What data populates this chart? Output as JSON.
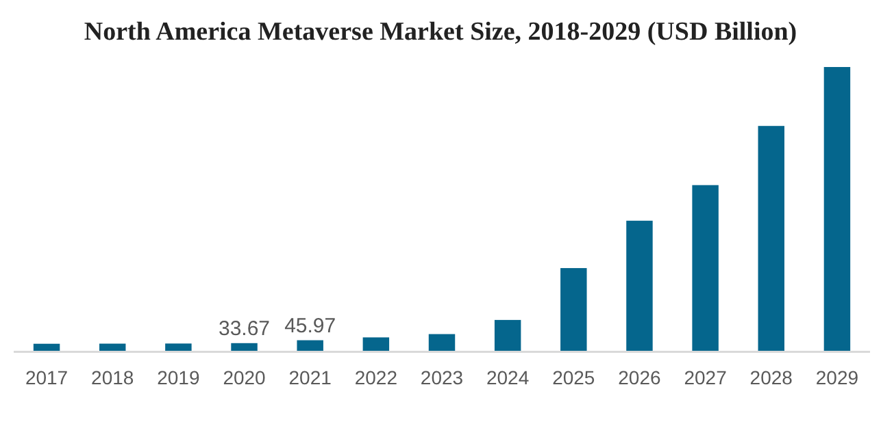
{
  "chart_data": {
    "type": "bar",
    "title": "North America Metaverse Market Size, 2018-2029 (USD Billion)",
    "categories": [
      "2017",
      "2018",
      "2019",
      "2020",
      "2021",
      "2022",
      "2023",
      "2024",
      "2025",
      "2026",
      "2027",
      "2028",
      "2029"
    ],
    "values": [
      31,
      31.5,
      32,
      33.67,
      45.97,
      58,
      72,
      132,
      352,
      553,
      704,
      955,
      1205
    ],
    "value_labels": [
      null,
      null,
      null,
      "33.67",
      "45.97",
      null,
      null,
      null,
      null,
      null,
      null,
      null,
      null
    ],
    "color": "#05668d"
  }
}
